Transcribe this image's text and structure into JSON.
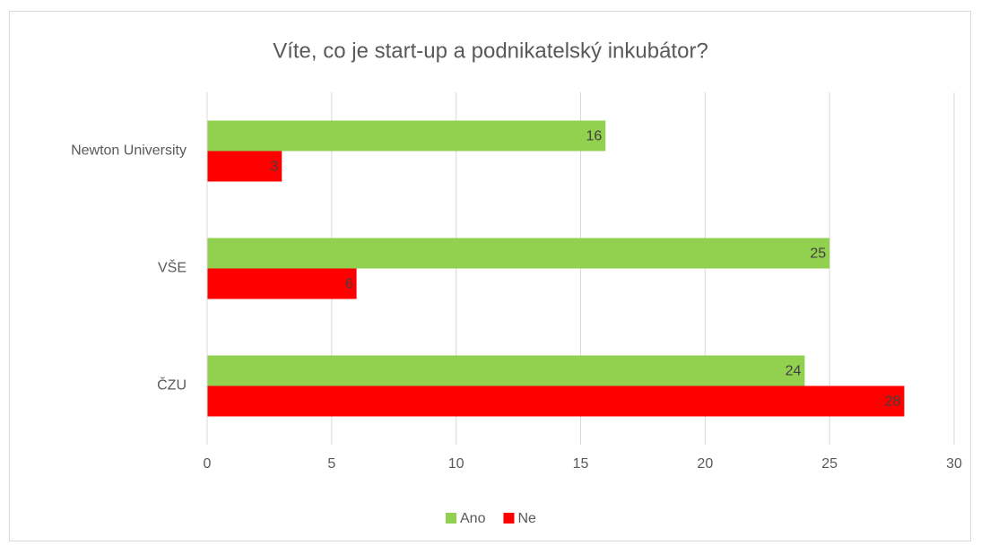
{
  "chart_data": {
    "type": "bar",
    "orientation": "horizontal",
    "title": "Víte, co je start-up a podnikatelský inkubátor?",
    "categories": [
      "Newton University",
      "VŠE",
      "ČZU"
    ],
    "series": [
      {
        "name": "Ano",
        "color": "#92d050",
        "values": [
          16,
          25,
          24
        ]
      },
      {
        "name": "Ne",
        "color": "#ff0000",
        "values": [
          3,
          6,
          28
        ]
      }
    ],
    "xlim": [
      0,
      30
    ],
    "xticks": [
      0,
      5,
      10,
      15,
      20,
      25,
      30
    ],
    "grid": true,
    "legend": "bottom"
  }
}
